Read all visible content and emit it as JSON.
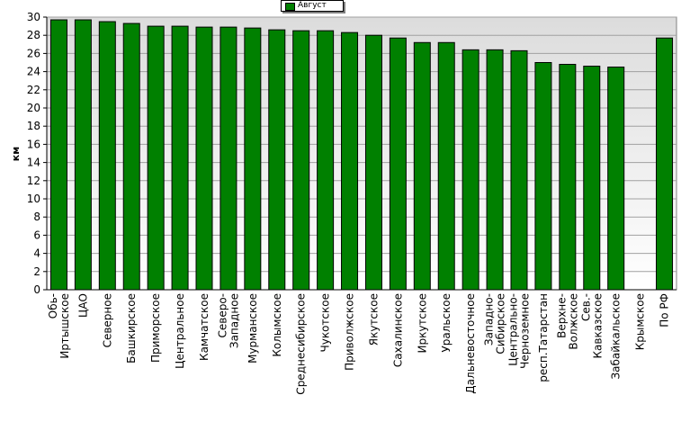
{
  "chart_data": {
    "type": "bar",
    "ylabel": "км",
    "ylim": [
      0,
      30
    ],
    "yticks": [
      0,
      2,
      4,
      6,
      8,
      10,
      12,
      14,
      16,
      18,
      20,
      22,
      24,
      26,
      28,
      30
    ],
    "grid": true,
    "legend_position": "top-center",
    "series": [
      {
        "name": "Август",
        "color": "#008000",
        "values": [
          29.7,
          29.7,
          29.5,
          29.3,
          29.0,
          29.0,
          28.9,
          28.9,
          28.8,
          28.6,
          28.5,
          28.5,
          28.3,
          28.0,
          27.7,
          27.2,
          27.2,
          26.4,
          26.4,
          26.3,
          25.0,
          24.8,
          24.6,
          24.5,
          0,
          27.7
        ]
      }
    ],
    "categories": [
      [
        "Обь-",
        "Иртышское"
      ],
      [
        "ЦАО"
      ],
      [
        "Северное"
      ],
      [
        "Башкирское"
      ],
      [
        "Приморское"
      ],
      [
        "Центральное"
      ],
      [
        "Камчатское"
      ],
      [
        "Северо-",
        "Западное"
      ],
      [
        "Мурманское"
      ],
      [
        "Колымское"
      ],
      [
        "Среднесибирское"
      ],
      [
        "Чукотское"
      ],
      [
        "Приволжское"
      ],
      [
        "Якутское"
      ],
      [
        "Сахалинское"
      ],
      [
        "Иркутское"
      ],
      [
        "Уральское"
      ],
      [
        "Дальневосточное"
      ],
      [
        "Западно-",
        "Сибирское"
      ],
      [
        "Центрально-",
        "Черноземное"
      ],
      [
        "респ.Татарстан"
      ],
      [
        "Верхне-",
        "Волжское"
      ],
      [
        "Сев.-",
        "Кавказское"
      ],
      [
        "Забайкальское"
      ],
      [
        "Крымское"
      ],
      [
        "По РФ"
      ]
    ]
  }
}
